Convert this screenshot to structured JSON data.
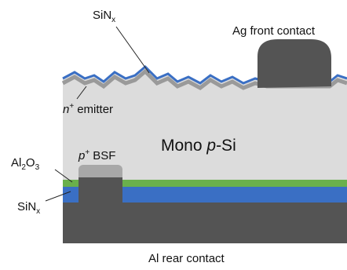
{
  "labels": {
    "sinx_top": [
      "SiN",
      "x"
    ],
    "ag_contact": [
      "Ag front contact"
    ],
    "emitter": [
      "n",
      "+",
      "emitter"
    ],
    "bulk": [
      "Mono ",
      "p",
      "-Si"
    ],
    "al2o3": [
      "Al",
      "2",
      "O",
      "3"
    ],
    "bsf": [
      "p",
      "+",
      "BSF"
    ],
    "sinx_rear": [
      "SiN",
      "x"
    ],
    "al_contact": [
      "Al rear contact"
    ]
  }
}
